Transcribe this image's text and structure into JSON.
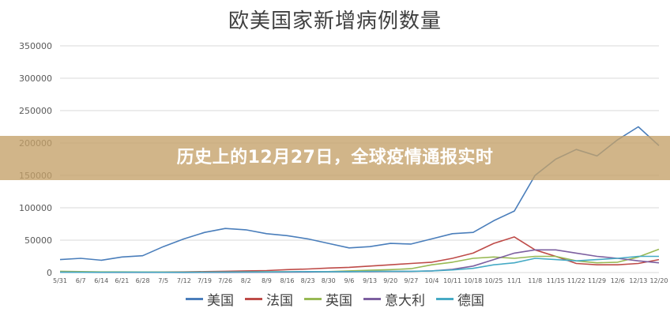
{
  "banner": {
    "text": "历史上的12月27日，全球疫情通报实时"
  },
  "chart_data": {
    "type": "line",
    "title": "欧美国家新增病例数量",
    "xlabel": "",
    "ylabel": "",
    "ylim": [
      0,
      350000
    ],
    "yticks": [
      "0",
      "50000",
      "100000",
      "150000",
      "200000",
      "250000",
      "300000",
      "350000"
    ],
    "grid": true,
    "legend_position": "bottom",
    "x": [
      "5/31",
      "6/7",
      "6/14",
      "6/21",
      "6/28",
      "7/5",
      "7/12",
      "7/19",
      "7/26",
      "8/2",
      "8/9",
      "8/16",
      "8/23",
      "8/30",
      "9/6",
      "9/13",
      "9/20",
      "9/27",
      "10/4",
      "10/11",
      "10/18",
      "10/25",
      "11/1",
      "11/8",
      "11/15",
      "11/22",
      "11/29",
      "12/6",
      "12/13",
      "12/20"
    ],
    "series": [
      {
        "name": "美国",
        "color": "#4a7ebb",
        "values": [
          20000,
          22000,
          19000,
          24000,
          26000,
          40000,
          52000,
          62000,
          68000,
          66000,
          60000,
          57000,
          52000,
          45000,
          38000,
          40000,
          45000,
          44000,
          52000,
          60000,
          62000,
          80000,
          95000,
          150000,
          175000,
          190000,
          180000,
          205000,
          225000,
          196000
        ]
      },
      {
        "name": "法国",
        "color": "#be4b48",
        "values": [
          1000,
          800,
          600,
          700,
          800,
          900,
          1000,
          1500,
          2000,
          2500,
          3000,
          4500,
          5500,
          7000,
          8000,
          10000,
          12000,
          14000,
          16000,
          22000,
          30000,
          45000,
          55000,
          35000,
          25000,
          14000,
          12000,
          12000,
          14000,
          20000
        ]
      },
      {
        "name": "英国",
        "color": "#98b954",
        "values": [
          2000,
          1500,
          1000,
          1000,
          800,
          700,
          600,
          700,
          800,
          1000,
          1100,
          1100,
          1200,
          1500,
          2500,
          3500,
          4500,
          6000,
          12000,
          16000,
          22000,
          24000,
          22000,
          25000,
          25000,
          18000,
          15000,
          16000,
          24000,
          36000
        ]
      },
      {
        "name": "意大利",
        "color": "#7d60a0",
        "values": [
          500,
          350,
          300,
          250,
          200,
          200,
          180,
          250,
          300,
          400,
          450,
          600,
          800,
          1200,
          1500,
          1500,
          1700,
          1800,
          2500,
          5000,
          10000,
          20000,
          30000,
          35000,
          35000,
          30000,
          25000,
          22000,
          18000,
          15000
        ]
      },
      {
        "name": "德国",
        "color": "#46aac5",
        "values": [
          500,
          400,
          400,
          500,
          450,
          400,
          400,
          600,
          700,
          800,
          1000,
          1200,
          1500,
          1400,
          1300,
          1800,
          2000,
          2000,
          2500,
          4000,
          6500,
          12000,
          15000,
          22000,
          20000,
          18000,
          20000,
          22000,
          25000,
          25000
        ]
      }
    ]
  }
}
